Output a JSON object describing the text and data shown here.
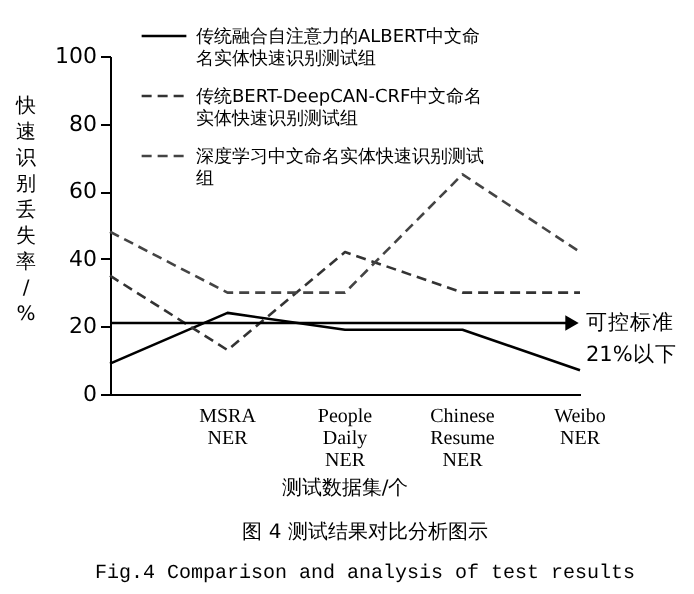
{
  "chart_data": {
    "type": "line",
    "xlabel": "测试数据集/个",
    "ylabel": "快速识别丢失率/%",
    "categories": [
      null,
      "MSRA NER",
      "People Daily NER",
      "Chinese Resume NER",
      "Weibo NER"
    ],
    "ylim": [
      0,
      100
    ],
    "yticks": [
      0,
      20,
      40,
      60,
      80,
      100
    ],
    "grid": false,
    "legend": "top left",
    "marker": "none",
    "series": [
      {
        "name": "传统融合自注意力的ALBERT中文命名实体快速识别测试组",
        "color": "#000000",
        "line_style": "solid",
        "values": [
          9,
          24,
          19,
          19,
          7
        ]
      },
      {
        "name": "传统BERT-DeepCAN-CRF中文命名实体快速识别测试组",
        "color": "#333333",
        "line_style": "dashed",
        "values": [
          35,
          13,
          42,
          30,
          30
        ]
      },
      {
        "name": "深度学习中文命名实体快速识别测试组",
        "color": "#444444",
        "line_style": "dashed",
        "values": [
          48,
          30,
          30,
          65,
          42
        ]
      }
    ],
    "ref_lines": [
      {
        "axis": "y",
        "value": 21,
        "label": "可控标准 21%以下",
        "color": "#000000",
        "line_style": "solid"
      }
    ],
    "annotations": [
      "图 4 测试结果对比分析图示",
      "Fig.4 Comparison and analysis of test results"
    ]
  }
}
